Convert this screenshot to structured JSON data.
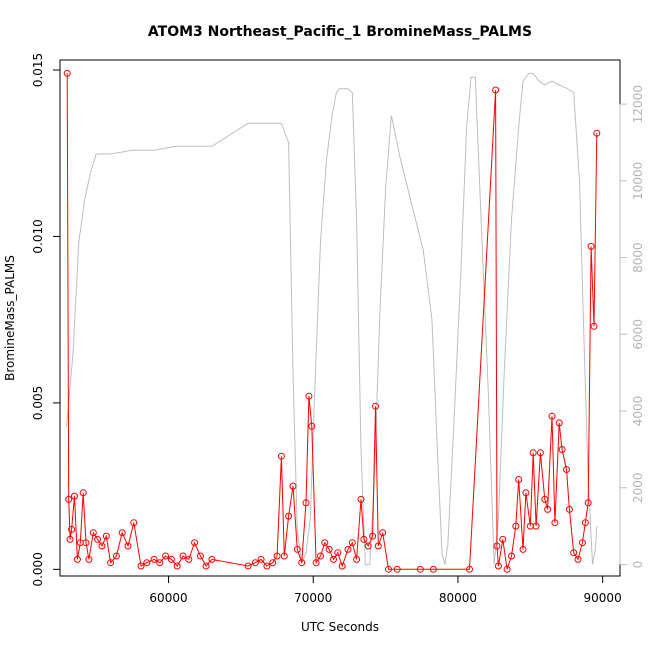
{
  "chart_data": {
    "type": "line",
    "title": "ATOM3 Northeast_Pacific_1 BromineMass_PALMS",
    "xlabel": "UTC Seconds",
    "ylabel": "BromineMass_PALMS",
    "xlim": [
      52500,
      91200
    ],
    "ylim": [
      -0.0002,
      0.0153
    ],
    "x_ticks": [
      60000,
      70000,
      80000,
      90000
    ],
    "y_ticks": [
      "0.000",
      "0.005",
      "0.010",
      "0.015"
    ],
    "y2lim": [
      -300,
      13150
    ],
    "y2_ticks": [
      0,
      2000,
      4000,
      6000,
      8000,
      10000,
      12000
    ],
    "colors": {
      "primary": "#ff0000",
      "secondary": "#bebebe"
    },
    "series": [
      {
        "role": "primary",
        "x": [
          53000,
          53100,
          53200,
          53300,
          53500,
          53700,
          53900,
          54100,
          54300,
          54500,
          54800,
          55100,
          55400,
          55700,
          56000,
          56400,
          56800,
          57200,
          57600,
          58100,
          58500,
          59000,
          59400,
          59800,
          60200,
          60600,
          61000,
          61400,
          61800,
          62200,
          62600,
          63000,
          65500,
          66000,
          66400,
          66800,
          67200,
          67500,
          67800,
          68000,
          68300,
          68600,
          68900,
          69200,
          69500,
          69700,
          69900,
          70200,
          70500,
          70800,
          71100,
          71400,
          71700,
          72000,
          72400,
          72700,
          73000,
          73300,
          73500,
          73800,
          74100,
          74300,
          74500,
          74800,
          75200,
          75800,
          77400,
          78300,
          80800,
          82600,
          82700,
          82800,
          83100,
          83400,
          83700,
          84000,
          84200,
          84500,
          84700,
          85000,
          85200,
          85400,
          85700,
          86000,
          86200,
          86500,
          86700,
          87000,
          87200,
          87500,
          87700,
          88000,
          88300,
          88600,
          88800,
          89000,
          89200,
          89400,
          89600
        ],
        "y": [
          0.0149,
          0.0021,
          0.0009,
          0.0012,
          0.0022,
          0.0003,
          0.0008,
          0.0023,
          0.0008,
          0.0003,
          0.0011,
          0.0009,
          0.0007,
          0.001,
          0.0002,
          0.0004,
          0.0011,
          0.0007,
          0.0014,
          0.0001,
          0.0002,
          0.0003,
          0.0002,
          0.0004,
          0.0003,
          0.0001,
          0.0004,
          0.0003,
          0.0008,
          0.0004,
          0.0001,
          0.0003,
          0.0001,
          0.0002,
          0.0003,
          0.0001,
          0.0002,
          0.0004,
          0.0034,
          0.0004,
          0.0016,
          0.0025,
          0.0006,
          0.0002,
          0.002,
          0.0052,
          0.0043,
          0.0002,
          0.0004,
          0.0008,
          0.0006,
          0.0003,
          0.0005,
          0.0001,
          0.0006,
          0.0008,
          0.0003,
          0.0021,
          0.0009,
          0.0007,
          0.001,
          0.0049,
          0.0007,
          0.0011,
          0.0,
          0.0,
          0.0,
          0.0,
          0.0,
          0.0144,
          0.0007,
          0.0001,
          0.0009,
          0.0,
          0.0004,
          0.0013,
          0.0027,
          0.0006,
          0.0023,
          0.0013,
          0.0035,
          0.0013,
          0.0035,
          0.0021,
          0.0018,
          0.0046,
          0.0014,
          0.0044,
          0.0036,
          0.003,
          0.0018,
          0.0005,
          0.0003,
          0.0008,
          0.0014,
          0.002,
          0.0097,
          0.0073,
          0.0131
        ]
      },
      {
        "role": "secondary",
        "x": [
          52950,
          53400,
          53800,
          54200,
          54600,
          55000,
          56000,
          57500,
          59000,
          60500,
          62000,
          63000,
          65500,
          66500,
          67800,
          68300,
          68600,
          68900,
          69200,
          69500,
          69800,
          70100,
          70500,
          70900,
          71300,
          71600,
          71800,
          72000,
          72400,
          72700,
          73000,
          73300,
          73600,
          73900,
          74200,
          74600,
          75000,
          75400,
          76000,
          76800,
          77600,
          78200,
          78600,
          78900,
          79100,
          79300,
          79700,
          80200,
          80600,
          80900,
          81200,
          81600,
          82100,
          82500,
          82800,
          83200,
          83700,
          84200,
          84500,
          84900,
          85200,
          85600,
          86000,
          86500,
          87000,
          87600,
          88000,
          88400,
          88700,
          89000,
          89300,
          89500,
          89600
        ],
        "y": [
          3600,
          5500,
          8400,
          9500,
          10200,
          10700,
          10700,
          10800,
          10800,
          10900,
          10900,
          10900,
          11500,
          11500,
          11500,
          11000,
          5000,
          900,
          30,
          300,
          1200,
          4500,
          8400,
          10500,
          11700,
          12300,
          12400,
          12400,
          12400,
          12300,
          9000,
          3000,
          0,
          0,
          2000,
          6500,
          9800,
          11700,
          10600,
          9400,
          8200,
          6400,
          2800,
          300,
          0,
          500,
          3500,
          7600,
          11400,
          12700,
          12700,
          9000,
          4500,
          0,
          1200,
          5000,
          9000,
          11400,
          12600,
          12800,
          12800,
          12600,
          12500,
          12600,
          12500,
          12400,
          12300,
          10000,
          6000,
          2200,
          0,
          400,
          1000
        ]
      }
    ]
  }
}
